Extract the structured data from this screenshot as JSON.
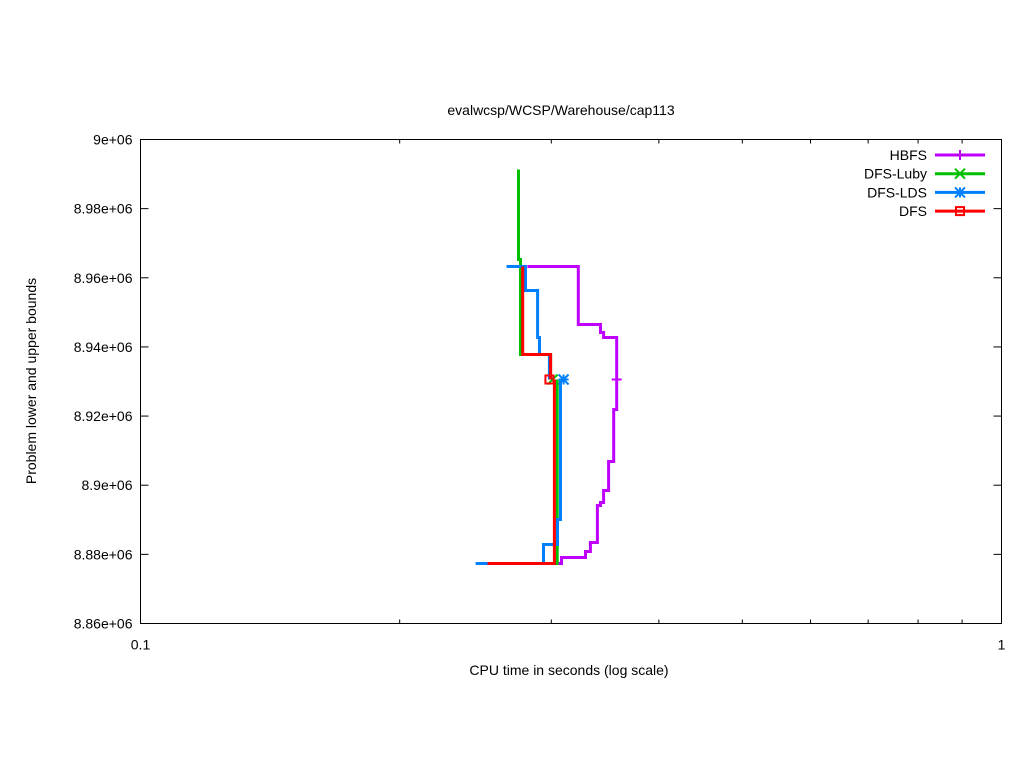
{
  "chart_data": {
    "type": "line",
    "title": "evalwcsp/WCSP/Warehouse/cap113",
    "xlabel": "CPU time in seconds (log scale)",
    "ylabel": "Problem lower and upper bounds",
    "x_scale": "log",
    "xlim": [
      0.1,
      1
    ],
    "ylim": [
      8860000,
      9000000
    ],
    "x_ticks": [
      {
        "value": 0.1,
        "label": "0.1"
      },
      {
        "value": 1,
        "label": "1"
      }
    ],
    "x_minor_ticks": [
      0.2,
      0.3,
      0.4,
      0.5,
      0.6,
      0.7,
      0.8,
      0.9
    ],
    "y_ticks": [
      {
        "value": 8860000,
        "label": "8.86e+06"
      },
      {
        "value": 8880000,
        "label": "8.88e+06"
      },
      {
        "value": 8900000,
        "label": "8.9e+06"
      },
      {
        "value": 8920000,
        "label": "8.92e+06"
      },
      {
        "value": 8940000,
        "label": "8.94e+06"
      },
      {
        "value": 8960000,
        "label": "8.96e+06"
      },
      {
        "value": 8980000,
        "label": "8.98e+06"
      },
      {
        "value": 9000000,
        "label": "9e+06"
      }
    ],
    "grid": false,
    "legend_position": "top-right",
    "series": [
      {
        "name": "HBFS",
        "color": "#c000ff",
        "marker": "plus",
        "upper": [
          [
            0.2814,
            8963260
          ],
          [
            0.3225,
            8963260
          ],
          [
            0.3225,
            8946490
          ],
          [
            0.3422,
            8946490
          ],
          [
            0.3422,
            8944170
          ],
          [
            0.345,
            8944170
          ],
          [
            0.345,
            8942730
          ],
          [
            0.3573,
            8942730
          ],
          [
            0.3573,
            8930580
          ]
        ],
        "lower": [
          [
            0.253,
            8877350
          ],
          [
            0.3083,
            8877350
          ],
          [
            0.3083,
            8879090
          ],
          [
            0.3287,
            8879090
          ],
          [
            0.3287,
            8880820
          ],
          [
            0.3331,
            8880820
          ],
          [
            0.3331,
            8883430
          ],
          [
            0.3394,
            8883430
          ],
          [
            0.3394,
            8894130
          ],
          [
            0.3422,
            8894130
          ],
          [
            0.3422,
            8895000
          ],
          [
            0.345,
            8895000
          ],
          [
            0.345,
            8898470
          ],
          [
            0.3497,
            8898470
          ],
          [
            0.3497,
            8906860
          ],
          [
            0.3545,
            8906860
          ],
          [
            0.3545,
            8921900
          ],
          [
            0.3573,
            8921900
          ],
          [
            0.3573,
            8930580
          ]
        ],
        "final": [
          0.3573,
          8930580
        ]
      },
      {
        "name": "DFS-Luby",
        "color": "#00c000",
        "marker": "cross",
        "upper": [
          [
            0.2748,
            8991320
          ],
          [
            0.2748,
            8965290
          ],
          [
            0.2763,
            8965290
          ],
          [
            0.2763,
            8937810
          ],
          [
            0.2994,
            8937810
          ],
          [
            0.2994,
            8930580
          ]
        ],
        "lower": [
          [
            0.28,
            8877350
          ],
          [
            0.3048,
            8877350
          ],
          [
            0.3048,
            8930580
          ]
        ],
        "final": [
          0.301,
          8930580
        ]
      },
      {
        "name": "DFS-LDS",
        "color": "#0080ff",
        "marker": "star",
        "upper": [
          [
            0.2661,
            8963260
          ],
          [
            0.28,
            8963260
          ],
          [
            0.28,
            8956320
          ],
          [
            0.2892,
            8956320
          ],
          [
            0.2892,
            8942730
          ],
          [
            0.2907,
            8942730
          ],
          [
            0.2907,
            8937810
          ],
          [
            0.2985,
            8937810
          ],
          [
            0.2985,
            8930580
          ]
        ],
        "lower": [
          [
            0.245,
            8877350
          ],
          [
            0.2938,
            8877350
          ],
          [
            0.2938,
            8882850
          ],
          [
            0.305,
            8882850
          ],
          [
            0.305,
            8890080
          ],
          [
            0.3075,
            8890080
          ],
          [
            0.3075,
            8930580
          ]
        ],
        "final": [
          0.31,
          8930580
        ]
      },
      {
        "name": "DFS",
        "color": "#ff0000",
        "marker": "square",
        "upper": [
          [
            0.2779,
            8963260
          ],
          [
            0.2779,
            8937810
          ],
          [
            0.2994,
            8937810
          ],
          [
            0.2994,
            8930580
          ]
        ],
        "lower": [
          [
            0.253,
            8877350
          ],
          [
            0.3025,
            8877350
          ],
          [
            0.3025,
            8930580
          ]
        ],
        "final": [
          0.2985,
          8930580
        ]
      }
    ]
  }
}
